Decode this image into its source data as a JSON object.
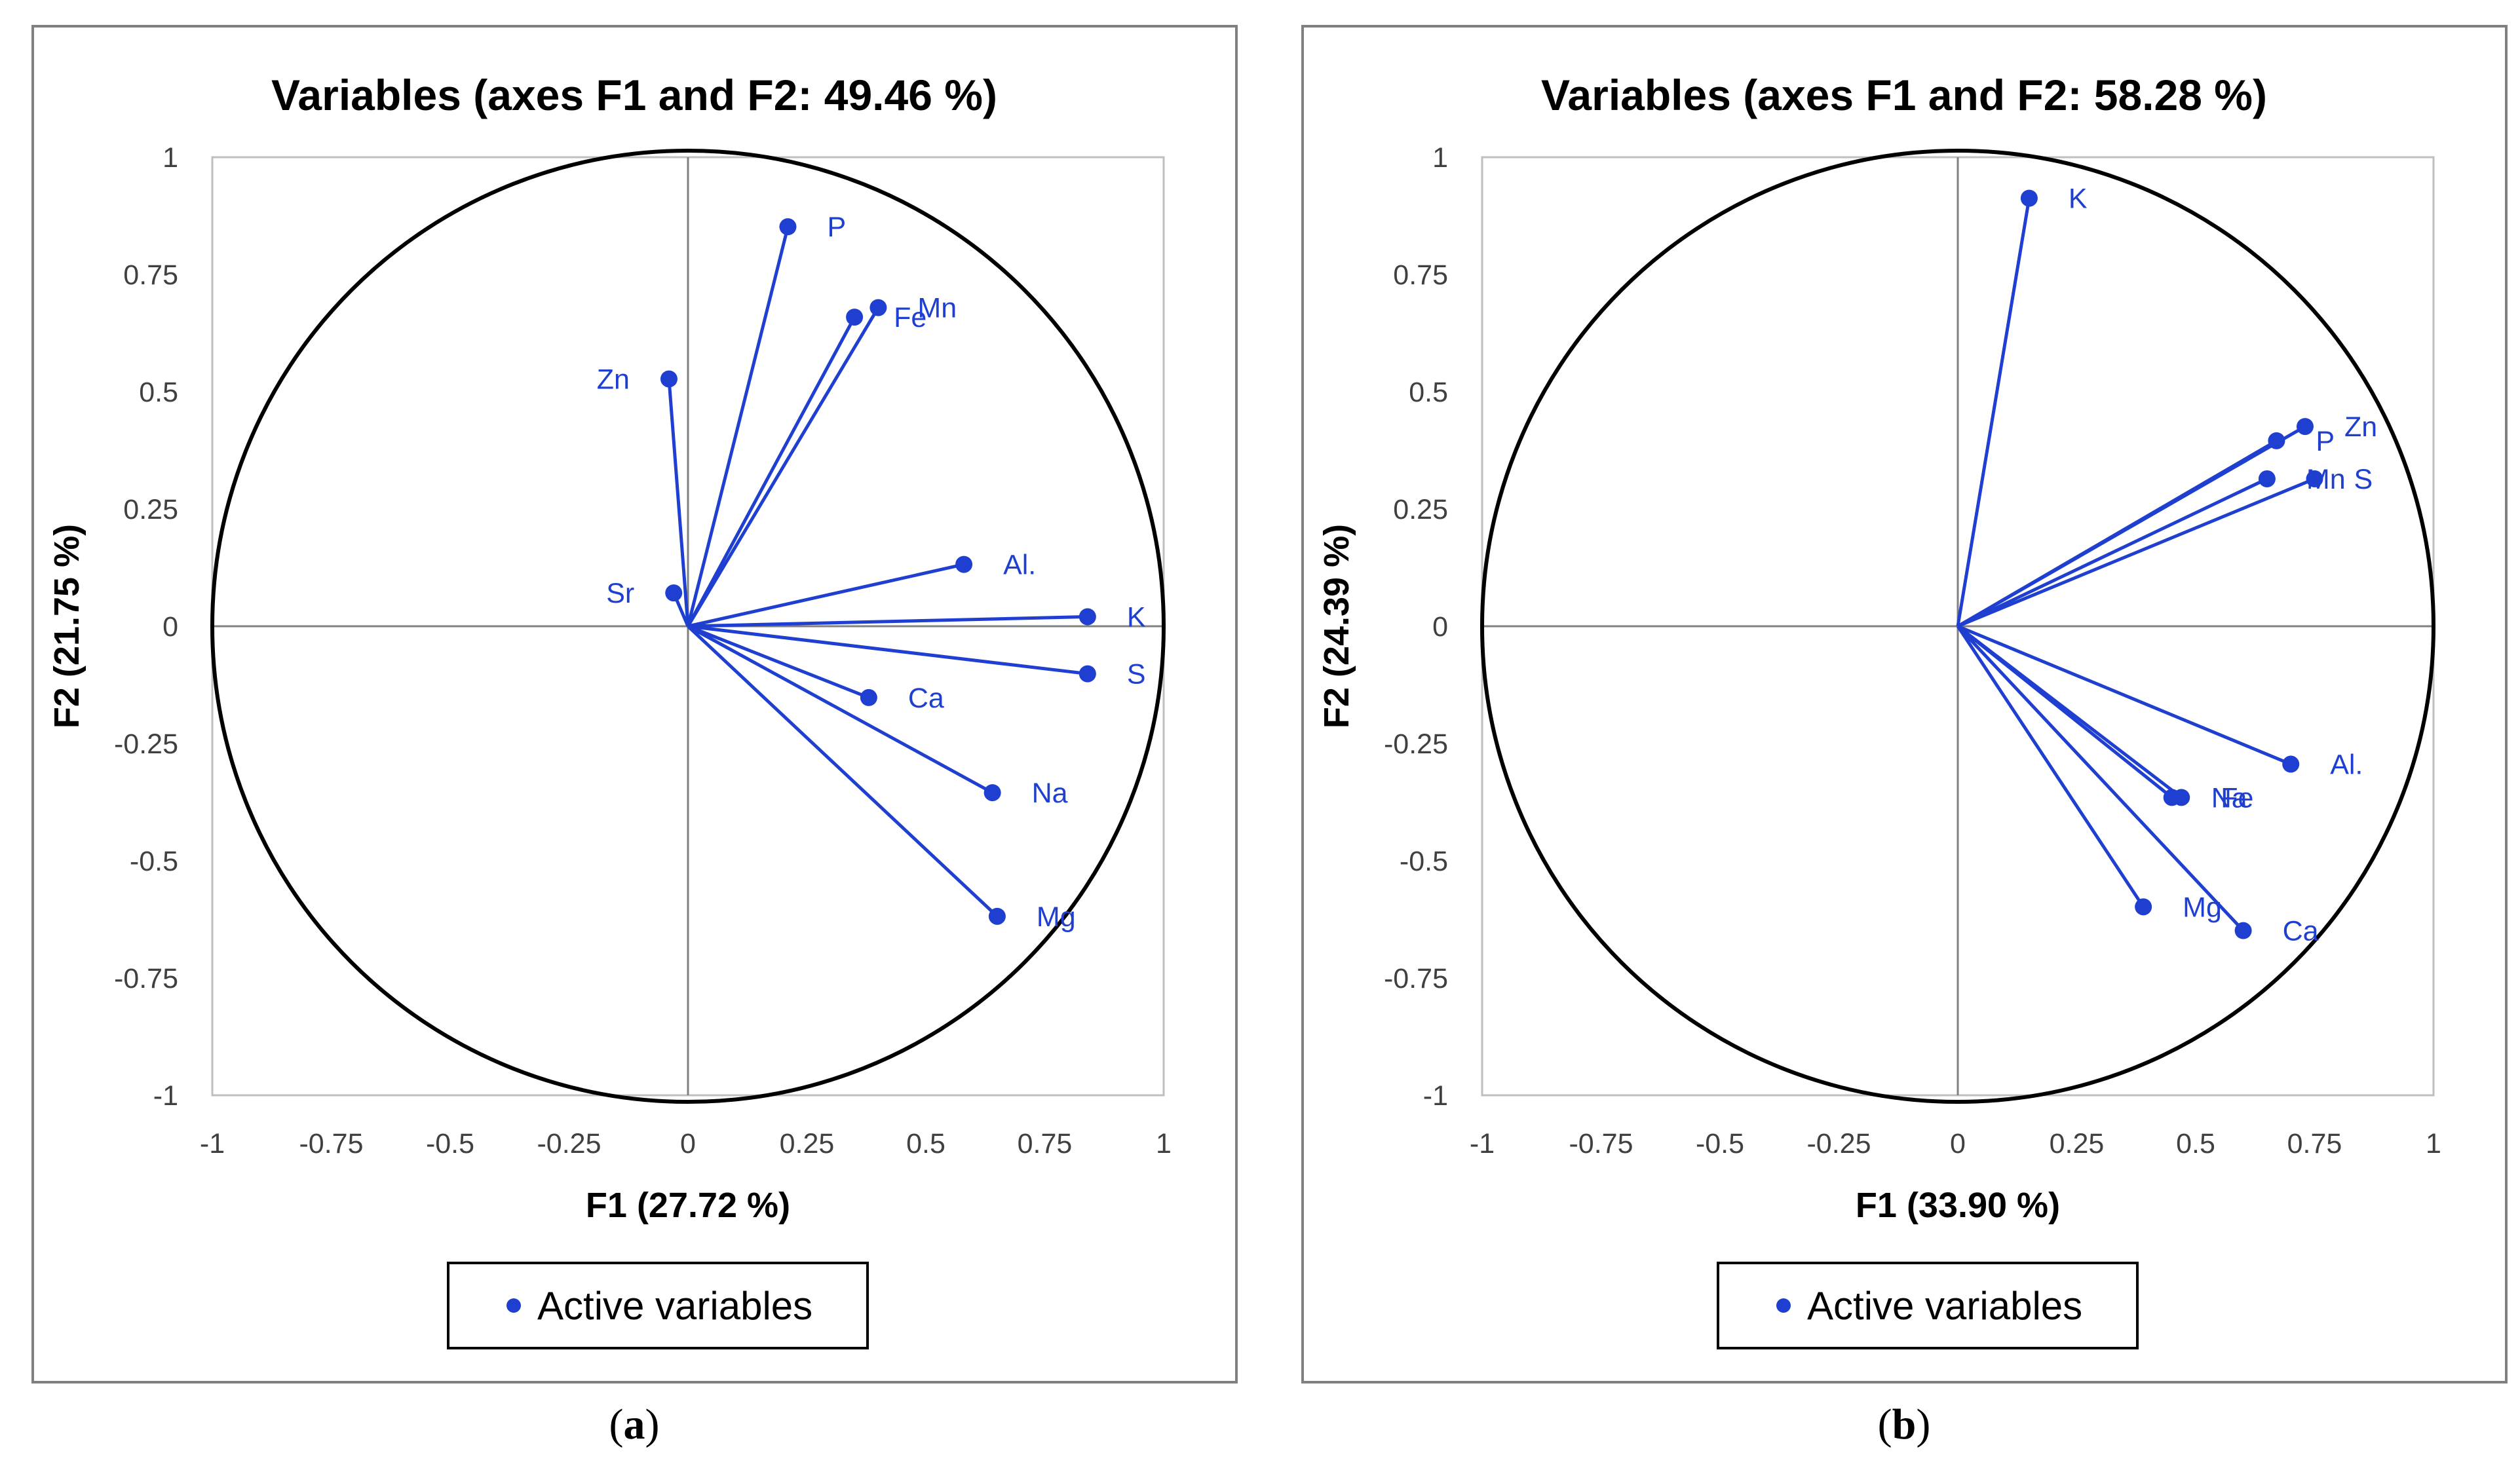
{
  "chart_data": [
    {
      "type": "scatter",
      "subtype": "correlation-circle",
      "panel_label": "a",
      "title": "Variables (axes F1 and F2: 49.46 %)",
      "xlabel": "F1 (27.72 %)",
      "ylabel": "F2 (21.75 %)",
      "xlim": [
        -1,
        1
      ],
      "ylim": [
        -1,
        1
      ],
      "xticks": [
        "-1",
        "-0.75",
        "-0.5",
        "-0.25",
        "0",
        "0.25",
        "0.5",
        "0.75",
        "1"
      ],
      "yticks": [
        "-1",
        "-0.75",
        "-0.5",
        "-0.25",
        "0",
        "0.25",
        "0.5",
        "0.75",
        "1"
      ],
      "legend": "Active variables",
      "series_color": "#1f3fd0",
      "points": [
        {
          "name": "P",
          "x": 0.21,
          "y": 0.84
        },
        {
          "name": "Fe",
          "x": 0.35,
          "y": 0.65
        },
        {
          "name": "Mn",
          "x": 0.4,
          "y": 0.67
        },
        {
          "name": "Zn",
          "x": -0.04,
          "y": 0.52
        },
        {
          "name": "Al.",
          "x": 0.58,
          "y": 0.13
        },
        {
          "name": "Sr",
          "x": -0.03,
          "y": 0.07
        },
        {
          "name": "K",
          "x": 0.84,
          "y": 0.02
        },
        {
          "name": "S",
          "x": 0.84,
          "y": -0.1
        },
        {
          "name": "Ca",
          "x": 0.38,
          "y": -0.15
        },
        {
          "name": "Na",
          "x": 0.64,
          "y": -0.35
        },
        {
          "name": "Mg",
          "x": 0.65,
          "y": -0.61
        }
      ]
    },
    {
      "type": "scatter",
      "subtype": "correlation-circle",
      "panel_label": "b",
      "title": "Variables (axes F1 and F2: 58.28 %)",
      "xlabel": "F1 (33.90 %)",
      "ylabel": "F2 (24.39 %)",
      "xlim": [
        -1,
        1
      ],
      "ylim": [
        -1,
        1
      ],
      "xticks": [
        "-1",
        "-0.75",
        "-0.5",
        "-0.25",
        "0",
        "0.25",
        "0.5",
        "0.75",
        "1"
      ],
      "yticks": [
        "-1",
        "-0.75",
        "-0.5",
        "-0.25",
        "0",
        "0.25",
        "0.5",
        "0.75",
        "1"
      ],
      "legend": "Active variables",
      "series_color": "#1f3fd0",
      "points": [
        {
          "name": "K",
          "x": 0.15,
          "y": 0.9
        },
        {
          "name": "P",
          "x": 0.67,
          "y": 0.39
        },
        {
          "name": "Zn",
          "x": 0.73,
          "y": 0.42
        },
        {
          "name": "Mn",
          "x": 0.65,
          "y": 0.31
        },
        {
          "name": "S",
          "x": 0.75,
          "y": 0.31
        },
        {
          "name": "Al.",
          "x": 0.7,
          "y": -0.29
        },
        {
          "name": "Na",
          "x": 0.45,
          "y": -0.36
        },
        {
          "name": "Fe",
          "x": 0.47,
          "y": -0.36
        },
        {
          "name": "Mg",
          "x": 0.39,
          "y": -0.59
        },
        {
          "name": "Ca",
          "x": 0.6,
          "y": -0.64
        }
      ]
    }
  ]
}
